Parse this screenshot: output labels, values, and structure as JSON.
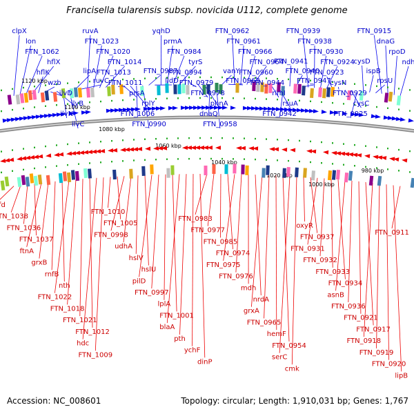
{
  "title": "Francisella tularensis subsp. novicida U112, complete genome",
  "accession_label": "Accession: NC_008601",
  "summary_label": "Topology: circular; Length: 1,910,031 bp; Genes: 1,767",
  "colors": {
    "plus_strand": "#0000ee",
    "minus_strand": "#ee0000",
    "backbone": "#8a8a8a",
    "tick": "#22aa22"
  },
  "kbp_ticks": [
    "1120 kbp",
    "1100 kbp",
    "1080 kbp",
    "1060 kbp",
    "1040 kbp",
    "1020 kbp",
    "1000 kbp",
    "980 kbp"
  ],
  "plus_labels": [
    "clpX",
    "lon",
    "FTN_1062",
    "hflX",
    "hflK",
    "wzb",
    "ilvD",
    "ilvB",
    "ilvN",
    "ilvC",
    "lipA",
    "ruvC",
    "ruvA",
    "FTN_1023",
    "FTN_1020",
    "FTN_1014",
    "FTN_1013",
    "FTN_1011",
    "prsA",
    "rplY",
    "FTN_1006",
    "FTN_0990",
    "FTN_0987",
    "lldD",
    "yqhD",
    "prmA",
    "FTN_0984",
    "tyrS",
    "FTN_0994",
    "FTN_0979",
    "FTN_0978",
    "phnA",
    "dnaQ",
    "FTN_0958",
    "vanY",
    "FTN_0963",
    "FTN_0962",
    "FTN_0961",
    "FTN_0966",
    "FTN_0964",
    "FTN_0960",
    "FTN_0944",
    "rimI",
    "rsuA",
    "FTN_0942",
    "FTN_0941",
    "FTN_0940",
    "FTN_0947",
    "FTN_0939",
    "FTN_0938",
    "FTN_0930",
    "FTN_0924",
    "FTN_0923",
    "cysN",
    "FTN_0929",
    "cysC",
    "FTN_0925",
    "cysD",
    "ispB",
    "rpsU",
    "FTN_0915",
    "dnaG",
    "rpoD",
    "ndh"
  ],
  "minus_labels": [
    "mfd",
    "FTN_1038",
    "FTN_1036",
    "FTN_1037",
    "ftnA",
    "grxB",
    "rnfB",
    "nth",
    "FTN_1022",
    "FTN_1018",
    "FTN_1021",
    "FTN_1012",
    "hdc",
    "FTN_1009",
    "FTN_1010",
    "FTN_1005",
    "FTN_0998",
    "udhA",
    "hslV",
    "hslU",
    "pilD",
    "FTN_0997",
    "lplA",
    "FTN_1001",
    "blaA",
    "pth",
    "ychF",
    "dinP",
    "FTN_0983",
    "FTN_0977",
    "FTN_0985",
    "FTN_0974",
    "FTN_0975",
    "FTN_0976",
    "mdh",
    "nrdA",
    "grxA",
    "FTN_0965",
    "hemF",
    "FTN_0954",
    "serC",
    "cmk",
    "oxyR",
    "FTN_0937",
    "FTN_0931",
    "FTN_0932",
    "FTN_0933",
    "FTN_0934",
    "asnB",
    "FTN_0936",
    "FTN_0921",
    "FTN_0917",
    "FTN_0918",
    "FTN_0919",
    "FTN_0920",
    "lipB",
    "FTN_0911"
  ]
}
